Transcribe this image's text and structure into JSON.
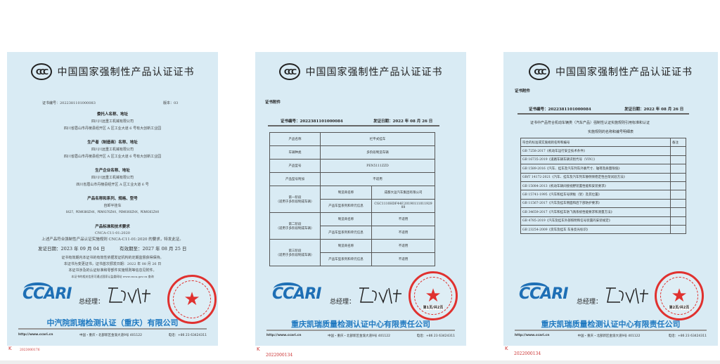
{
  "common": {
    "cert_title": "中国国家强制性产品认证证书",
    "ccc_logo": "CCC",
    "ccari_logo": "CCARI",
    "gm_label": "总经理：",
    "website": "http://www.ccari.cn",
    "address": "中国・重庆・北部新区金渝大道9号 401122",
    "phone": "电话：+86 23 63424311",
    "k_mark": "K"
  },
  "cert1": {
    "number": "证书编号：2022381101000083",
    "version": "版本：03",
    "sections": [
      {
        "heading": "委托人名称、地址",
        "lines": [
          "四川川远重工机械有限公司",
          "四川省眉山市丹棱县经开区 A 区工业大道 6 号有大创新工业园"
        ]
      },
      {
        "heading": "生产者（制造商）名称、地址",
        "lines": [
          "四川川远重工机械有限公司",
          "四川省眉山市丹棱县经开区 A 区工业大道 6 号有大创新工业园"
        ]
      },
      {
        "heading": "生产企业名称、地址",
        "lines": [
          "四川川远重工机械有限公司",
          "四川省眉山市丹棱县经开区 A 区工业大道 6 号"
        ]
      },
      {
        "heading": "产品名称和系列、规格、型号",
        "lines": [
          "自卸半挂车",
          "0427、PEN9380ZHX、PEN9370ZHX、PEN9360ZHX、PEN9361ZHX"
        ]
      },
      {
        "heading": "产品标准和技术要求",
        "lines": [
          "CNCA-C11-01:2020"
        ]
      }
    ],
    "statement": "上述产品符合强制性产品认证实施规则 CNCA-C11-01:2020 的要求，特发此证。",
    "issue_date": "发证日期：2023 年 09 月 04 日",
    "valid_until": "有效期至：2027 年 08 月 25 日",
    "notes": [
      "证书有效期内本证书的有效性依据发证机构的定期监督获得保持。",
      "本证书为变更证书，证书首次颁发日期：2022 年 08 月 26 日",
      "本证书涉及的认证标准和零部件实施规则等信息见附件。",
      "本证书的相关信息可通过国家认监委网站 www.cnca.gov.cn 查询"
    ],
    "company": "中汽院凯瑞检测认证（重庆）有限公司",
    "serial": "2023000176"
  },
  "cert2": {
    "attachment": "证书附件",
    "number": "证书编号：2022381101000084",
    "issue_date": "发证日期：2022 年 08 月 26 日",
    "rows": [
      [
        "产品名称",
        "栏平式挂车"
      ],
      [
        "车辆种类",
        "多阶段制造车辆"
      ],
      [
        "产品型号",
        "PEN5111ZZD"
      ],
      [
        "产品型号附加",
        "不适用"
      ]
    ],
    "stages": [
      {
        "name": "第一阶段",
        "note": "（适用于多阶段制成车辆）",
        "maker_label": "制造商名称",
        "maker": "成都大运汽车集团有限公司",
        "info_label": "产品车型系列和单元信息",
        "info": "CGC1110HDF44F,2019011101192988"
      },
      {
        "name": "第二阶段",
        "note": "（适用于多阶段制成车辆）",
        "maker_label": "制造商名称",
        "maker": "不适用",
        "info_label": "产品车型系列和单元信息",
        "info": "不适用"
      },
      {
        "name": "第三阶段",
        "note": "（适用于多阶段制成车辆）",
        "maker_label": "制造商名称",
        "maker": "不适用",
        "info_label": "产品车型系列和单元信息",
        "info": "不适用"
      }
    ],
    "page": "第1页/共2页",
    "company": "重庆凯瑞质量检测认证中心有限责任公司",
    "serial": "2022000134"
  },
  "cert3": {
    "attachment": "证书附件",
    "number": "证书编号：2022381101000084",
    "issue_date": "发证日期：2022 年 08 月 26 日",
    "intro": [
      "证书中产品符合机动车辆类（汽车产品）强制性认证实施规则引用标准和认证",
      "实施规则的名称和编号明细表"
    ],
    "table_header": [
      "符合的标准或实施规则名称和编号",
      "备注"
    ],
    "standards": [
      "GB 7258-2017《机动车运行安全技术条件》",
      "GB 16735-2019《道路车辆车辆识别代号（VIN）》",
      "GB 1589-2016《汽车、挂车及汽车列车外廓尺寸、轴荷及质量限值》",
      "GB/T 14172-2021《汽车、挂车及汽车列车静侧倾稳定性台架试验方法》",
      "GB 15084-2013《机动车辆间接视野装置性能和安装要求》",
      "GB 15741-1995《汽车和挂车号牌板（架）及其位置》",
      "GB 11567-2017《汽车及挂车侧面和后下部防护要求》",
      "GB 34659-2017《汽车和挂车防飞溅系统性能要求和测量方法》",
      "GB 4785-2019《汽车及挂车外部照明和信号装置的安装规定》",
      "GB 23254-2009《货车及挂车 车身反光标识》"
    ],
    "page": "第2页/共2页",
    "company": "重庆凯瑞质量检测认证中心有限责任公司",
    "serial": "2022000134"
  },
  "colors": {
    "panel": "#d9ebf4",
    "brand_blue": "#1e78c0",
    "stamp_red": "#e0312f"
  }
}
